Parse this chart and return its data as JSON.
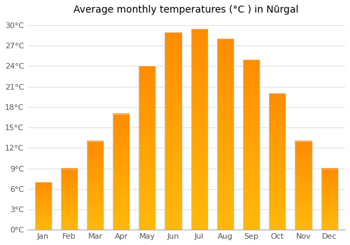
{
  "title": "Average monthly temperatures (°C ) in Nūrgal",
  "months": [
    "Jan",
    "Feb",
    "Mar",
    "Apr",
    "May",
    "Jun",
    "Jul",
    "Aug",
    "Sep",
    "Oct",
    "Nov",
    "Dec"
  ],
  "values": [
    7,
    9,
    13,
    17,
    24,
    29,
    29.5,
    28,
    25,
    20,
    13,
    9
  ],
  "bar_color": "#FFAA00",
  "ylim": [
    0,
    31
  ],
  "yticks": [
    0,
    3,
    6,
    9,
    12,
    15,
    18,
    21,
    24,
    27,
    30
  ],
  "ytick_labels": [
    "0°C",
    "3°C",
    "6°C",
    "9°C",
    "12°C",
    "15°C",
    "18°C",
    "21°C",
    "24°C",
    "27°C",
    "30°C"
  ],
  "title_fontsize": 10,
  "tick_fontsize": 8,
  "bg_color": "#ffffff",
  "grid_color": "#e0e0e0",
  "bar_edge_color": "#dddddd",
  "bar_width": 0.65
}
